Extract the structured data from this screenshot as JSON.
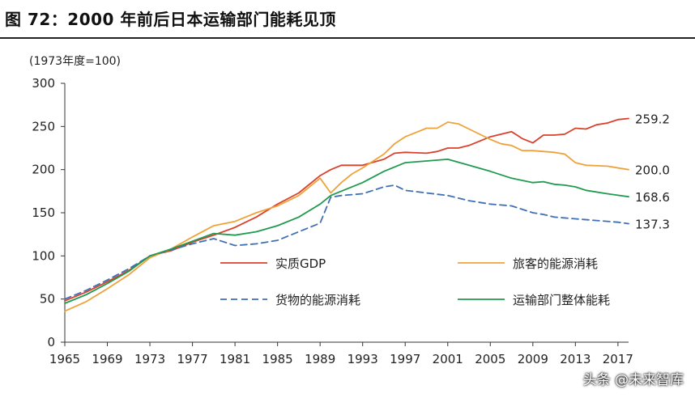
{
  "title": "图 72：2000 年前后日本运输部门能耗见顶",
  "watermark": "头条 @未来智库",
  "chart_data": {
    "type": "line",
    "unit_note": "(1973年度=100)",
    "x_ticks": [
      "1965",
      "1969",
      "1973",
      "1977",
      "1981",
      "1985",
      "1989",
      "1993",
      "1997",
      "2001",
      "2005",
      "2009",
      "2013",
      "2017"
    ],
    "ylim": [
      0,
      300
    ],
    "y_ticks": [
      0,
      50,
      100,
      150,
      200,
      250,
      300
    ],
    "xlim": [
      1965,
      2018
    ],
    "legend_placement": "inside-bottom-right",
    "series": [
      {
        "name": "实质GDP",
        "color": "#d9412b",
        "dashed": false,
        "x": [
          1965,
          1967,
          1969,
          1971,
          1973,
          1975,
          1977,
          1979,
          1981,
          1983,
          1985,
          1987,
          1989,
          1990,
          1991,
          1992,
          1993,
          1995,
          1996,
          1997,
          1999,
          2000,
          2001,
          2002,
          2003,
          2005,
          2007,
          2008,
          2009,
          2010,
          2011,
          2012,
          2013,
          2014,
          2015,
          2016,
          2017,
          2018
        ],
        "values": [
          48,
          58,
          70,
          83,
          100,
          106,
          116,
          124,
          133,
          145,
          160,
          173,
          193,
          200,
          205,
          205,
          205,
          212,
          219,
          220,
          219,
          221,
          225,
          225,
          228,
          238,
          244,
          236,
          231,
          240,
          240,
          241,
          248,
          247,
          252,
          254,
          258,
          259.2
        ],
        "end_label": "259.2"
      },
      {
        "name": "旅客的能源消耗",
        "color": "#f0a23a",
        "dashed": false,
        "x": [
          1965,
          1967,
          1969,
          1971,
          1973,
          1975,
          1977,
          1979,
          1981,
          1983,
          1985,
          1987,
          1989,
          1990,
          1991,
          1992,
          1993,
          1995,
          1996,
          1997,
          1998,
          1999,
          2000,
          2001,
          2002,
          2003,
          2005,
          2006,
          2007,
          2008,
          2009,
          2011,
          2012,
          2013,
          2014,
          2016,
          2018
        ],
        "values": [
          36,
          47,
          62,
          78,
          98,
          108,
          122,
          135,
          140,
          150,
          158,
          170,
          190,
          173,
          185,
          195,
          202,
          218,
          230,
          238,
          243,
          248,
          248,
          255,
          253,
          247,
          235,
          230,
          228,
          222,
          222,
          220,
          218,
          208,
          205,
          204,
          200
        ],
        "end_label": "200.0"
      },
      {
        "name": "货物的能源消耗",
        "color": "#3f6fb5",
        "dashed": true,
        "x": [
          1965,
          1967,
          1969,
          1971,
          1973,
          1975,
          1977,
          1979,
          1981,
          1983,
          1985,
          1987,
          1989,
          1990,
          1991,
          1993,
          1995,
          1996,
          1997,
          1999,
          2001,
          2003,
          2005,
          2007,
          2009,
          2010,
          2011,
          2013,
          2015,
          2017,
          2018
        ],
        "values": [
          50,
          60,
          72,
          85,
          100,
          107,
          114,
          120,
          112,
          114,
          118,
          128,
          138,
          168,
          170,
          172,
          180,
          182,
          176,
          173,
          170,
          164,
          160,
          158,
          150,
          148,
          145,
          143,
          141,
          139,
          137.3
        ],
        "end_label": "137.3"
      },
      {
        "name": "运输部门整体能耗",
        "color": "#1f9a4e",
        "dashed": false,
        "x": [
          1965,
          1967,
          1969,
          1971,
          1973,
          1975,
          1977,
          1979,
          1981,
          1983,
          1985,
          1987,
          1989,
          1990,
          1991,
          1993,
          1995,
          1997,
          1999,
          2001,
          2003,
          2005,
          2007,
          2009,
          2010,
          2011,
          2012,
          2013,
          2014,
          2016,
          2018
        ],
        "values": [
          45,
          55,
          68,
          82,
          100,
          108,
          117,
          126,
          124,
          128,
          135,
          145,
          160,
          170,
          175,
          185,
          198,
          208,
          210,
          212,
          205,
          198,
          190,
          185,
          186,
          183,
          182,
          180,
          176,
          172,
          168.6
        ],
        "end_label": "168.6"
      }
    ]
  }
}
